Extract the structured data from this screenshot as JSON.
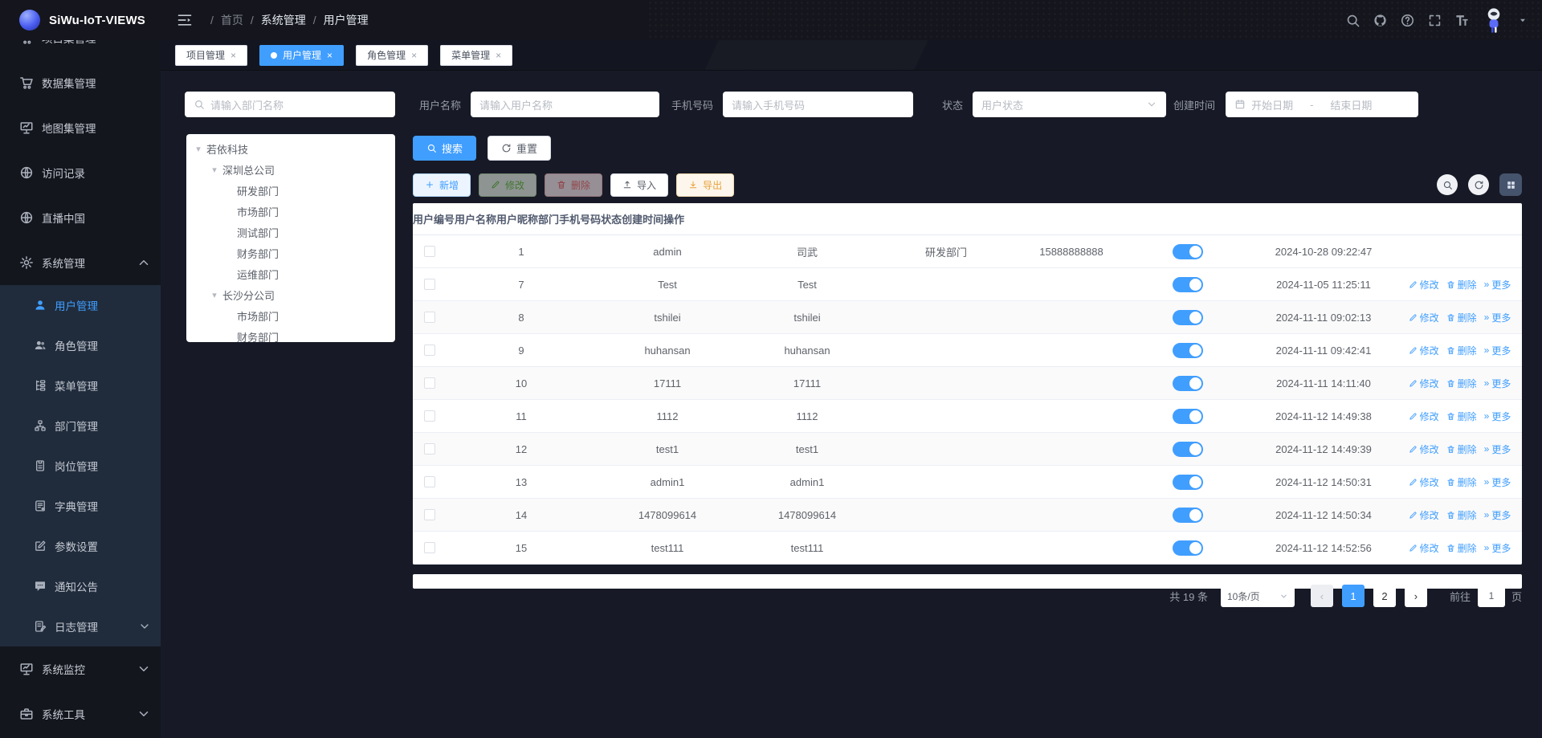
{
  "app": {
    "logo_title": "SiWu-IoT-VIEWS"
  },
  "colors": {
    "accent": "#409eff",
    "success": "#67c23a",
    "danger": "#f56c6c",
    "warning": "#e6a23c",
    "toggle_on": "#409eff"
  },
  "header": {
    "breadcrumb": [
      {
        "label": "首页",
        "muted": true
      },
      {
        "label": "系统管理"
      },
      {
        "label": "用户管理"
      }
    ],
    "separator": "/",
    "right_icons": [
      {
        "icon": "search"
      },
      {
        "icon": "github"
      },
      {
        "icon": "question"
      },
      {
        "icon": "fullscreen"
      },
      {
        "icon": "font-size"
      },
      {
        "icon": "avatar"
      },
      {
        "icon": "caret-down"
      }
    ]
  },
  "tabs": {
    "close_glyph": "×",
    "items": [
      {
        "label": "项目管理",
        "active": false
      },
      {
        "label": "用户管理",
        "active": true
      },
      {
        "label": "角色管理",
        "active": false
      },
      {
        "label": "菜单管理",
        "active": false
      }
    ]
  },
  "sidebar": {
    "items": [
      {
        "label": "项目集管理",
        "icon": "cart",
        "level": "top",
        "partial": true
      },
      {
        "label": "数据集管理",
        "icon": "cart",
        "level": "top"
      },
      {
        "label": "地图集管理",
        "icon": "chart-board",
        "level": "top"
      },
      {
        "label": "访问记录",
        "icon": "globe",
        "level": "top"
      },
      {
        "label": "直播中国",
        "icon": "globe",
        "level": "top"
      },
      {
        "label": "系统管理",
        "icon": "gear",
        "level": "top",
        "caret": "up"
      },
      {
        "label": "用户管理",
        "icon": "user",
        "level": "sub",
        "active": true
      },
      {
        "label": "角色管理",
        "icon": "users",
        "level": "sub"
      },
      {
        "label": "菜单管理",
        "icon": "menu-list",
        "level": "sub"
      },
      {
        "label": "部门管理",
        "icon": "org",
        "level": "sub"
      },
      {
        "label": "岗位管理",
        "icon": "badge",
        "level": "sub"
      },
      {
        "label": "字典管理",
        "icon": "dict",
        "level": "sub"
      },
      {
        "label": "参数设置",
        "icon": "edit-square",
        "level": "sub"
      },
      {
        "label": "通知公告",
        "icon": "comment",
        "level": "sub"
      },
      {
        "label": "日志管理",
        "icon": "log",
        "level": "sub",
        "caret": "down"
      },
      {
        "label": "系统监控",
        "icon": "chart-board",
        "level": "top",
        "caret": "down"
      },
      {
        "label": "系统工具",
        "icon": "toolbox",
        "level": "top",
        "caret": "down"
      }
    ]
  },
  "filters": {
    "dept_placeholder": "请输入部门名称",
    "username_label": "用户名称",
    "username_placeholder": "请输入用户名称",
    "phone_label": "手机号码",
    "phone_placeholder": "请输入手机号码",
    "status_label": "状态",
    "status_placeholder": "用户状态",
    "created_label": "创建时间",
    "date_start": "开始日期",
    "date_separator": "-",
    "date_end": "结束日期"
  },
  "dept_tree": {
    "caret_glyph": "▾",
    "nodes": [
      {
        "label": "若依科技",
        "level": 0,
        "expandable": true
      },
      {
        "label": "深圳总公司",
        "level": 1,
        "expandable": true
      },
      {
        "label": "研发部门",
        "level": 2
      },
      {
        "label": "市场部门",
        "level": 2
      },
      {
        "label": "测试部门",
        "level": 2
      },
      {
        "label": "财务部门",
        "level": 2
      },
      {
        "label": "运维部门",
        "level": 2
      },
      {
        "label": "长沙分公司",
        "level": 1,
        "expandable": true
      },
      {
        "label": "市场部门",
        "level": 2
      },
      {
        "label": "财务部门",
        "level": 2
      }
    ]
  },
  "toolbar": {
    "search_label": "搜索",
    "reset_label": "重置",
    "actions": [
      {
        "label": "新增",
        "icon": "plus",
        "type": "primary",
        "disabled": false
      },
      {
        "label": "修改",
        "icon": "edit-pen",
        "type": "success",
        "disabled": true
      },
      {
        "label": "删除",
        "icon": "trash",
        "type": "danger",
        "disabled": true
      },
      {
        "label": "导入",
        "icon": "upload",
        "type": "default",
        "disabled": false
      },
      {
        "label": "导出",
        "icon": "download",
        "type": "warning",
        "disabled": false
      }
    ],
    "mini_icons": [
      {
        "icon": "search"
      },
      {
        "icon": "refresh"
      },
      {
        "icon": "grid",
        "square": true
      }
    ]
  },
  "table": {
    "columns": [
      "",
      "用户编号",
      "用户名称",
      "用户昵称",
      "部门",
      "手机号码",
      "状态",
      "创建时间",
      "操作"
    ],
    "row_actions": {
      "edit": "修改",
      "delete": "删除",
      "more": "更多",
      "more_glyph": "»"
    },
    "rows": [
      {
        "id": "1",
        "name": "admin",
        "nick": "司武",
        "dept": "研发部门",
        "phone": "15888888888",
        "status": true,
        "created": "2024-10-28 09:22:47",
        "actions": false
      },
      {
        "id": "7",
        "name": "Test",
        "nick": "Test",
        "dept": "",
        "phone": "",
        "status": true,
        "created": "2024-11-05 11:25:11",
        "actions": true
      },
      {
        "id": "8",
        "name": "tshilei",
        "nick": "tshilei",
        "dept": "",
        "phone": "",
        "status": true,
        "created": "2024-11-11 09:02:13",
        "actions": true
      },
      {
        "id": "9",
        "name": "huhansan",
        "nick": "huhansan",
        "dept": "",
        "phone": "",
        "status": true,
        "created": "2024-11-11 09:42:41",
        "actions": true
      },
      {
        "id": "10",
        "name": "17111",
        "nick": "17111",
        "dept": "",
        "phone": "",
        "status": true,
        "created": "2024-11-11 14:11:40",
        "actions": true
      },
      {
        "id": "11",
        "name": "1112",
        "nick": "1112",
        "dept": "",
        "phone": "",
        "status": true,
        "created": "2024-11-12 14:49:38",
        "actions": true
      },
      {
        "id": "12",
        "name": "test1",
        "nick": "test1",
        "dept": "",
        "phone": "",
        "status": true,
        "created": "2024-11-12 14:49:39",
        "actions": true
      },
      {
        "id": "13",
        "name": "admin1",
        "nick": "admin1",
        "dept": "",
        "phone": "",
        "status": true,
        "created": "2024-11-12 14:50:31",
        "actions": true
      },
      {
        "id": "14",
        "name": "1478099614",
        "nick": "1478099614",
        "dept": "",
        "phone": "",
        "status": true,
        "created": "2024-11-12 14:50:34",
        "actions": true
      },
      {
        "id": "15",
        "name": "test111",
        "nick": "test111",
        "dept": "",
        "phone": "",
        "status": true,
        "created": "2024-11-12 14:52:56",
        "actions": true
      }
    ]
  },
  "pagination": {
    "total": "共 19 条",
    "page_size": "10条/页",
    "prev_glyph": "‹",
    "next_glyph": "›",
    "pages": [
      {
        "label": "1",
        "active": true
      },
      {
        "label": "2",
        "active": false
      }
    ],
    "goto_label": "前往",
    "goto_value": "1",
    "goto_unit": "页"
  }
}
